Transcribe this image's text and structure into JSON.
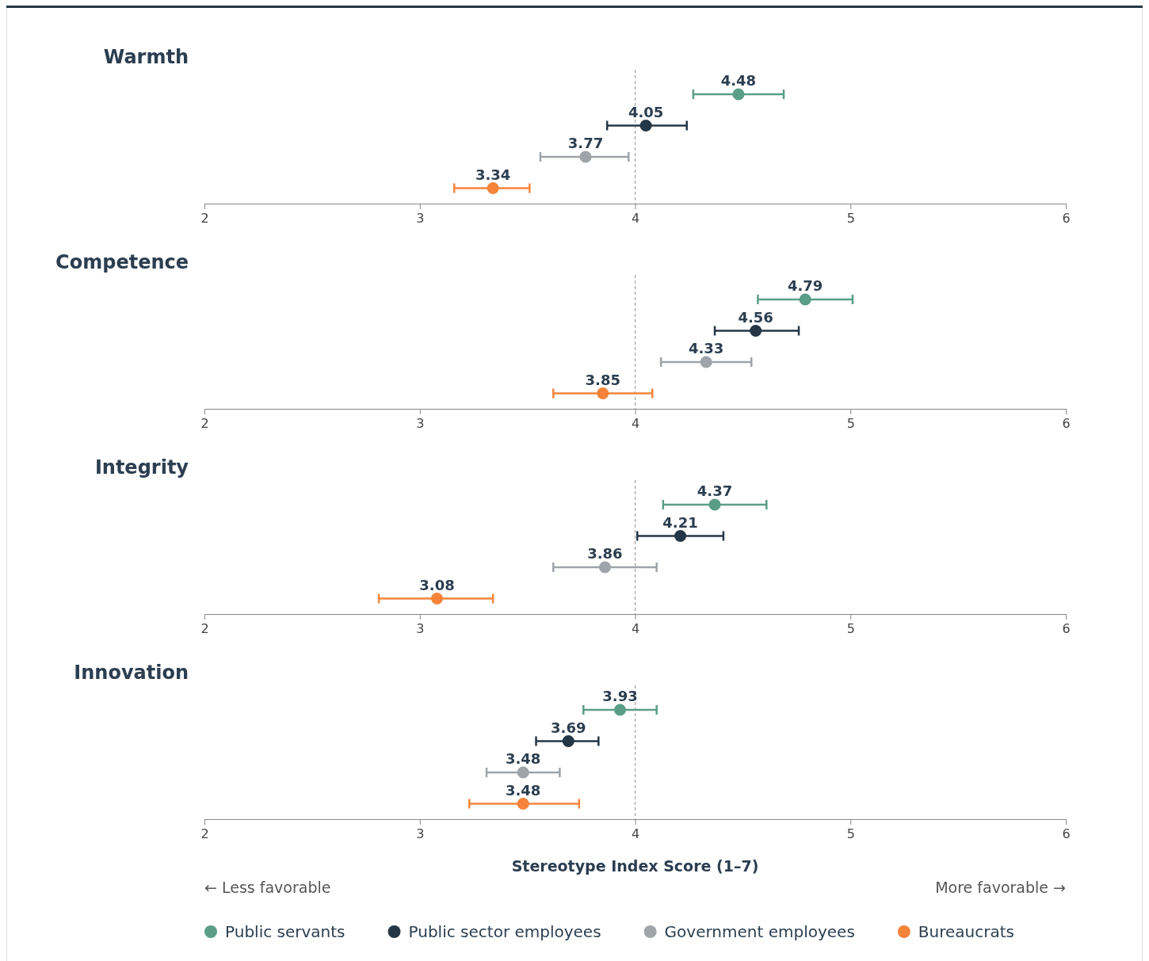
{
  "chart_data": [
    {
      "type": "scatter",
      "title": "Warmth",
      "orientation": "horizontal",
      "categories": [
        null,
        null,
        null,
        null
      ],
      "xlim": [
        2,
        6
      ],
      "xticks": [
        2,
        3,
        4,
        5,
        6
      ],
      "data_labels": true,
      "marker": "circle",
      "ref_lines": [
        {
          "axis": "x",
          "value": 4,
          "color": "#999999",
          "line_style": "dashed"
        }
      ],
      "series": [
        {
          "color": "#5a9e88",
          "values": [
            4.48,
            null,
            null,
            null
          ],
          "errors": [
            [
              4.27,
              4.69
            ],
            null,
            null,
            null
          ]
        },
        {
          "color": "#243746",
          "values": [
            null,
            4.05,
            null,
            null
          ],
          "errors": [
            null,
            [
              3.87,
              4.24
            ],
            null,
            null
          ]
        },
        {
          "color": "#9ea4a9",
          "values": [
            null,
            null,
            3.77,
            null
          ],
          "errors": [
            null,
            null,
            [
              3.56,
              3.97
            ],
            null
          ]
        },
        {
          "color": "#f5843a",
          "values": [
            null,
            null,
            null,
            3.34
          ],
          "errors": [
            null,
            null,
            null,
            [
              3.16,
              3.51
            ]
          ]
        }
      ]
    },
    {
      "type": "scatter",
      "title": "Competence",
      "orientation": "horizontal",
      "categories": [
        null,
        null,
        null,
        null
      ],
      "xlim": [
        2,
        6
      ],
      "xticks": [
        2,
        3,
        4,
        5,
        6
      ],
      "data_labels": true,
      "marker": "circle",
      "ref_lines": [
        {
          "axis": "x",
          "value": 4,
          "color": "#999999",
          "line_style": "dashed"
        }
      ],
      "series": [
        {
          "color": "#5a9e88",
          "values": [
            4.79,
            null,
            null,
            null
          ],
          "errors": [
            [
              4.57,
              5.01
            ],
            null,
            null,
            null
          ]
        },
        {
          "color": "#243746",
          "values": [
            null,
            4.56,
            null,
            null
          ],
          "errors": [
            null,
            [
              4.37,
              4.76
            ],
            null,
            null
          ]
        },
        {
          "color": "#9ea4a9",
          "values": [
            null,
            null,
            4.33,
            null
          ],
          "errors": [
            null,
            null,
            [
              4.12,
              4.54
            ],
            null
          ]
        },
        {
          "color": "#f5843a",
          "values": [
            null,
            null,
            null,
            3.85
          ],
          "errors": [
            null,
            null,
            null,
            [
              3.62,
              4.08
            ]
          ]
        }
      ]
    },
    {
      "type": "scatter",
      "title": "Integrity",
      "orientation": "horizontal",
      "categories": [
        null,
        null,
        null,
        null
      ],
      "xlim": [
        2,
        6
      ],
      "xticks": [
        2,
        3,
        4,
        5,
        6
      ],
      "data_labels": true,
      "marker": "circle",
      "ref_lines": [
        {
          "axis": "x",
          "value": 4,
          "color": "#999999",
          "line_style": "dashed"
        }
      ],
      "series": [
        {
          "color": "#5a9e88",
          "values": [
            4.37,
            null,
            null,
            null
          ],
          "errors": [
            [
              4.13,
              4.61
            ],
            null,
            null,
            null
          ]
        },
        {
          "color": "#243746",
          "values": [
            null,
            4.21,
            null,
            null
          ],
          "errors": [
            null,
            [
              4.01,
              4.41
            ],
            null,
            null
          ]
        },
        {
          "color": "#9ea4a9",
          "values": [
            null,
            null,
            3.86,
            null
          ],
          "errors": [
            null,
            null,
            [
              3.62,
              4.1
            ],
            null
          ]
        },
        {
          "color": "#f5843a",
          "values": [
            null,
            null,
            null,
            3.08
          ],
          "errors": [
            null,
            null,
            null,
            [
              2.81,
              3.34
            ]
          ]
        }
      ]
    },
    {
      "type": "scatter",
      "title": "Innovation",
      "orientation": "horizontal",
      "categories": [
        null,
        null,
        null,
        null
      ],
      "xlim": [
        2,
        6
      ],
      "xticks": [
        2,
        3,
        4,
        5,
        6
      ],
      "data_labels": true,
      "marker": "circle",
      "xlabel": "Stereotype Index Score (1–7)",
      "legend": "bottom",
      "annotations": [
        "← Less favorable",
        "More favorable →"
      ],
      "ref_lines": [
        {
          "axis": "x",
          "value": 4,
          "color": "#999999",
          "line_style": "dashed"
        }
      ],
      "series": [
        {
          "name": "Public servants",
          "color": "#5a9e88",
          "values": [
            3.93,
            null,
            null,
            null
          ],
          "errors": [
            [
              3.76,
              4.1
            ],
            null,
            null,
            null
          ]
        },
        {
          "name": "Public sector employees",
          "color": "#243746",
          "values": [
            null,
            3.69,
            null,
            null
          ],
          "errors": [
            null,
            [
              3.54,
              3.83
            ],
            null,
            null
          ]
        },
        {
          "name": "Government employees",
          "color": "#9ea4a9",
          "values": [
            null,
            null,
            3.48,
            null
          ],
          "errors": [
            null,
            null,
            [
              3.31,
              3.65
            ],
            null
          ]
        },
        {
          "name": "Bureaucrats",
          "color": "#f5843a",
          "values": [
            null,
            null,
            null,
            3.48
          ],
          "errors": [
            null,
            null,
            null,
            [
              3.23,
              3.74
            ]
          ]
        }
      ]
    }
  ]
}
